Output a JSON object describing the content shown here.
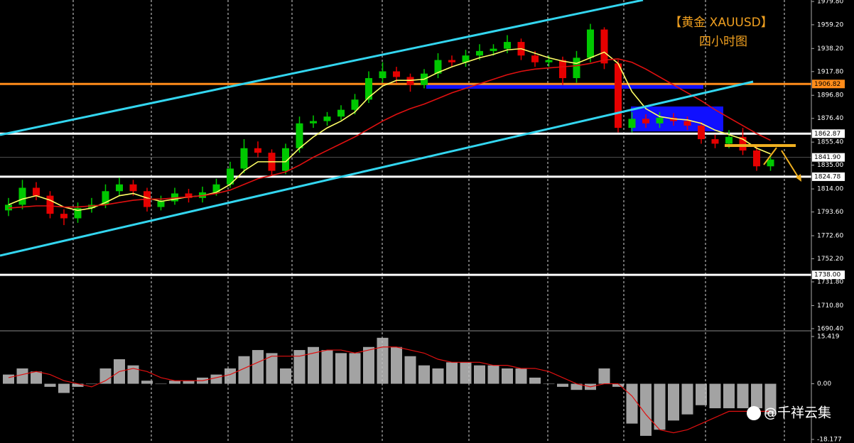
{
  "chart_data": {
    "type": "candlestick",
    "annotations": [
      "【黄金  XAUUSD】",
      "四小时图",
      "@千祥云集"
    ],
    "ylim": [
      1689.1,
      1981.1
    ],
    "yticks": [
      {
        "value": 1979.8,
        "label": "1979.80"
      },
      {
        "value": 1959.2,
        "label": "1959.20"
      },
      {
        "value": 1938.2,
        "label": "1938.20"
      },
      {
        "value": 1917.8,
        "label": "1917.80"
      },
      {
        "value": 1896.8,
        "label": "1896.80"
      },
      {
        "value": 1876.4,
        "label": "1876.40"
      },
      {
        "value": 1855.4,
        "label": "1855.40"
      },
      {
        "value": 1835,
        "label": "1835.00"
      },
      {
        "value": 1814,
        "label": "1814.00"
      },
      {
        "value": 1793.6,
        "label": "1793.60"
      },
      {
        "value": 1772.6,
        "label": "1772.60"
      },
      {
        "value": 1752.2,
        "label": "1752.20"
      },
      {
        "value": 1731.8,
        "label": "1731.80"
      },
      {
        "value": 1710.8,
        "label": "1710.80"
      },
      {
        "value": 1690.4,
        "label": "1690.40"
      }
    ],
    "up_color": "#00c800",
    "down_color": "#e60000",
    "candles": {
      "open": [
        1795,
        1800,
        1815,
        1808,
        1792,
        1788,
        1797,
        1800,
        1812,
        1818,
        1812,
        1798,
        1803,
        1810,
        1806,
        1811,
        1818,
        1832,
        1850,
        1846,
        1830,
        1850,
        1872,
        1874,
        1878,
        1884,
        1893,
        1912,
        1918,
        1913,
        1906,
        1916,
        1928,
        1926,
        1932,
        1936,
        1938,
        1944,
        1932,
        1926,
        1928,
        1912,
        1930,
        1955,
        1925,
        1868,
        1876,
        1872,
        1877,
        1874,
        1870,
        1858,
        1854,
        1860,
        1848,
        1834
      ],
      "high": [
        1806,
        1822,
        1820,
        1812,
        1796,
        1802,
        1806,
        1818,
        1824,
        1822,
        1815,
        1808,
        1815,
        1814,
        1816,
        1823,
        1838,
        1858,
        1856,
        1849,
        1854,
        1878,
        1879,
        1882,
        1888,
        1898,
        1918,
        1926,
        1922,
        1916,
        1920,
        1934,
        1932,
        1937,
        1942,
        1942,
        1950,
        1947,
        1936,
        1932,
        1931,
        1936,
        1960,
        1957,
        1928,
        1882,
        1880,
        1882,
        1881,
        1878,
        1873,
        1862,
        1866,
        1868,
        1852,
        1844
      ],
      "low": [
        1790,
        1796,
        1804,
        1788,
        1782,
        1784,
        1793,
        1797,
        1808,
        1808,
        1794,
        1795,
        1800,
        1802,
        1802,
        1808,
        1815,
        1828,
        1842,
        1826,
        1827,
        1846,
        1868,
        1870,
        1875,
        1880,
        1890,
        1908,
        1908,
        1900,
        1903,
        1912,
        1922,
        1922,
        1928,
        1932,
        1934,
        1928,
        1922,
        1922,
        1906,
        1908,
        1926,
        1920,
        1864,
        1864,
        1868,
        1868,
        1870,
        1866,
        1854,
        1850,
        1850,
        1844,
        1830,
        1830
      ],
      "close": [
        1800,
        1815,
        1808,
        1792,
        1788,
        1797,
        1800,
        1812,
        1818,
        1812,
        1798,
        1803,
        1810,
        1806,
        1811,
        1818,
        1832,
        1850,
        1846,
        1830,
        1850,
        1872,
        1874,
        1878,
        1884,
        1893,
        1912,
        1918,
        1913,
        1906,
        1916,
        1928,
        1926,
        1932,
        1936,
        1938,
        1944,
        1932,
        1926,
        1928,
        1912,
        1930,
        1955,
        1925,
        1868,
        1876,
        1872,
        1877,
        1874,
        1870,
        1858,
        1854,
        1860,
        1848,
        1834,
        1840
      ]
    },
    "moving_averages": [
      {
        "color": "#ffff66",
        "values": [
          1800,
          1805,
          1808,
          1804,
          1798,
          1795,
          1797,
          1802,
          1808,
          1810,
          1806,
          1803,
          1805,
          1807,
          1808,
          1811,
          1818,
          1830,
          1838,
          1838,
          1838,
          1850,
          1860,
          1868,
          1874,
          1882,
          1895,
          1905,
          1910,
          1910,
          1911,
          1917,
          1922,
          1926,
          1930,
          1933,
          1937,
          1938,
          1934,
          1930,
          1927,
          1925,
          1930,
          1935,
          1925,
          1900,
          1885,
          1878,
          1876,
          1875,
          1872,
          1866,
          1862,
          1858,
          1850,
          1845
        ]
      },
      {
        "color": "#e01010",
        "values": [
          1797,
          1798,
          1799,
          1799,
          1798,
          1798,
          1799,
          1800,
          1802,
          1804,
          1805,
          1805,
          1806,
          1807,
          1808,
          1810,
          1813,
          1818,
          1823,
          1826,
          1829,
          1835,
          1842,
          1848,
          1854,
          1860,
          1867,
          1874,
          1880,
          1885,
          1889,
          1894,
          1899,
          1903,
          1907,
          1911,
          1915,
          1918,
          1920,
          1921,
          1922,
          1923,
          1925,
          1928,
          1929,
          1926,
          1920,
          1913,
          1906,
          1899,
          1892,
          1884,
          1877,
          1870,
          1863,
          1857
        ]
      }
    ],
    "levels": [
      {
        "value": 1906.82,
        "color": "#ff8c1a"
      },
      {
        "value": 1862.87,
        "color": "#ffffff"
      },
      {
        "value": 1841.9,
        "label": "1841.90",
        "color": "#ffffff"
      },
      {
        "value": 1824.78,
        "color": "#ffffff"
      },
      {
        "value": 1738,
        "label": "1738.00",
        "color": "#ffffff"
      }
    ],
    "macd": {
      "ylim": [
        -18.177,
        15.419
      ],
      "yticks": [
        15.419,
        {
          "value": 0,
          "label": "0.00"
        },
        -18.177
      ],
      "hist_color": "#c0c0c0",
      "signal_color": "#e01010",
      "histogram": [
        3,
        5,
        4,
        -1,
        -3,
        -1,
        0,
        5,
        8,
        6,
        1,
        0,
        1,
        1,
        2,
        3,
        5,
        9,
        11,
        10,
        5,
        11,
        12,
        11,
        10,
        10,
        12,
        15,
        12,
        9,
        6,
        5,
        7,
        7,
        6,
        6,
        5,
        5,
        2,
        0,
        -1,
        -2,
        -2,
        5,
        -1,
        -13,
        -17,
        -15,
        -12,
        -10,
        -7,
        -8,
        -8,
        -8,
        -8,
        -10
      ],
      "signal": [
        2,
        3,
        4,
        3,
        1,
        0,
        -1,
        1,
        4,
        5,
        4,
        2,
        1,
        1,
        1,
        2,
        3,
        5,
        7,
        9,
        9,
        9,
        10,
        11,
        11,
        10,
        11,
        12,
        12,
        11,
        10,
        8,
        7,
        7,
        7,
        6,
        6,
        5,
        5,
        4,
        2,
        0,
        -1,
        0,
        0,
        -4,
        -10,
        -15,
        -16,
        -15,
        -13,
        -11,
        -9,
        -9,
        -9,
        -9
      ]
    }
  }
}
